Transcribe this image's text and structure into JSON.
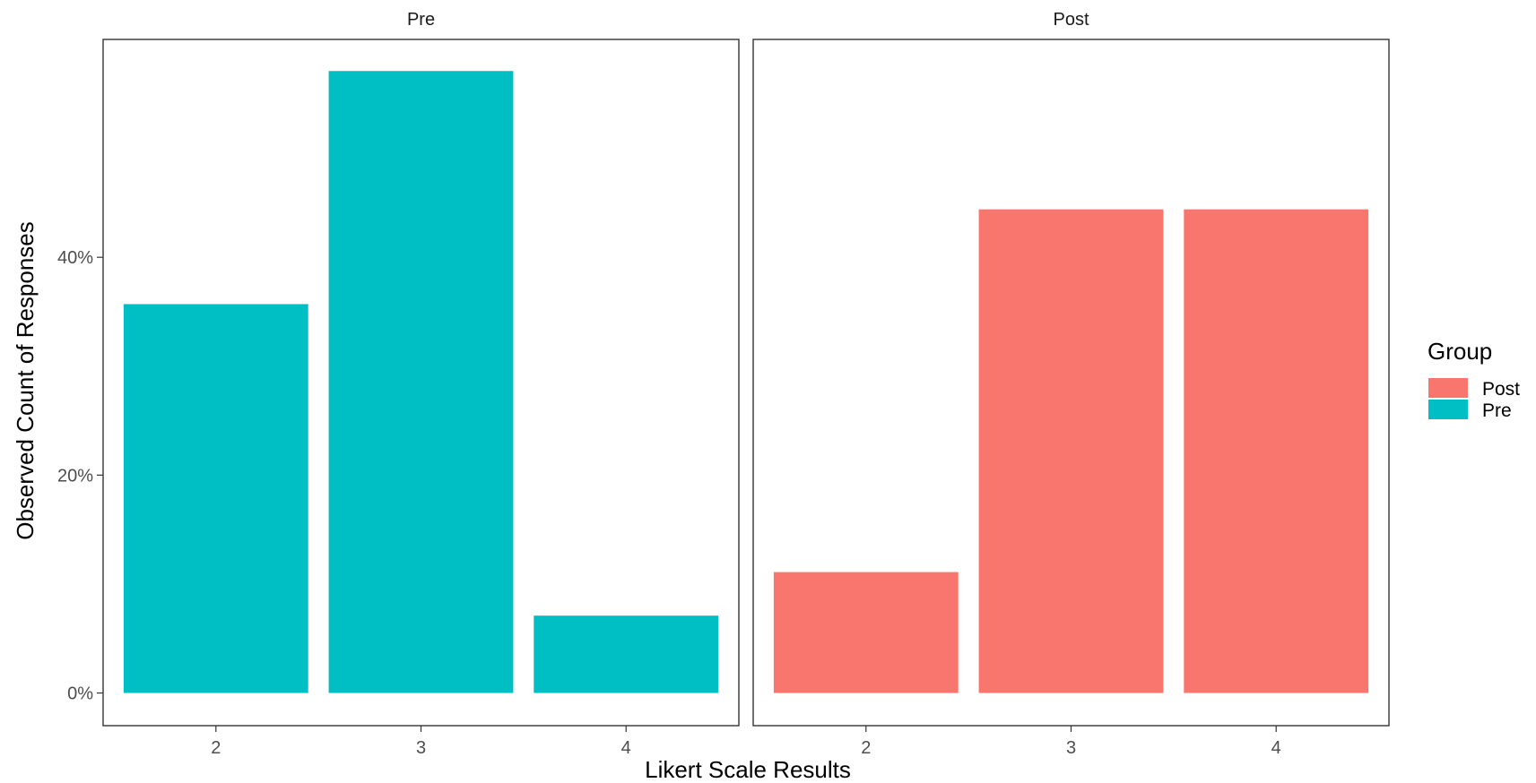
{
  "chart_data": {
    "type": "bar",
    "xlabel": "Likert Scale Results",
    "ylabel": "Observed Count of Responses",
    "y_unit": "percent",
    "ylim": [
      -3.0,
      60.0
    ],
    "y_ticks": [
      0,
      20,
      40
    ],
    "y_tick_labels": [
      "0%",
      "20%",
      "40%"
    ],
    "grid": false,
    "legend": {
      "title": "Group",
      "placement": "right",
      "entries": [
        {
          "label": "Post",
          "color": "#F8766D"
        },
        {
          "label": "Pre",
          "color": "#00BFC4"
        }
      ]
    },
    "facets": [
      {
        "strip": "Pre",
        "group": "Pre",
        "color": "#00BFC4",
        "categories": [
          "2",
          "3",
          "4"
        ],
        "values": [
          35.7,
          57.1,
          7.1
        ]
      },
      {
        "strip": "Post",
        "group": "Post",
        "color": "#F8766D",
        "categories": [
          "2",
          "3",
          "4"
        ],
        "values": [
          11.1,
          44.4,
          44.4
        ]
      }
    ]
  }
}
